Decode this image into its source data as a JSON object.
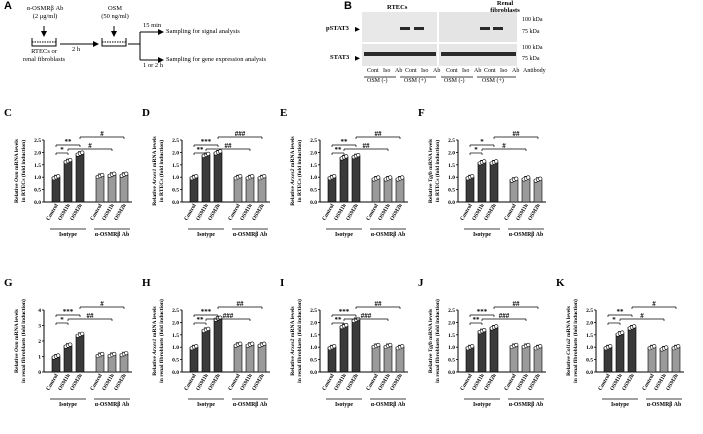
{
  "panel_a": {
    "letter": "A",
    "ab_label_line1": "α-OSMRβ Ab",
    "ab_label_line2": "(2 μg/ml)",
    "osm_label_line1": "OSM",
    "osm_label_line2": "(50 ng/ml)",
    "cells_line1": "RTECs or",
    "cells_line2": "renal fibroblasts",
    "time_2h": "2 h",
    "time_15min": "15 min",
    "time_1or2h": "1 or 2 h",
    "signal": "Sampling for signal analysis",
    "gene": "Sampling for gene expression analysis"
  },
  "panel_b": {
    "letter": "B",
    "group1": "RTECs",
    "group2": "Renal fibroblasts_line1",
    "group2_line1": "Renal",
    "group2_line2": "fibroblasts",
    "row1": "pSTAT3",
    "row2": "STAT3",
    "marker100": "100 kDa",
    "marker75": "75 kDa",
    "lanes": [
      "Cont",
      "Iso",
      "Ab",
      "Cont",
      "Iso",
      "Ab"
    ],
    "antibody": "Antibody",
    "osm_neg": "OSM (-)",
    "osm_pos": "OSM (+)"
  },
  "common": {
    "isotype": "Isotype",
    "ab": "α-OSMRβ Ab",
    "cats": [
      "Control",
      "OSM1h",
      "OSM2h",
      "Control",
      "OSM1h",
      "OSM2h"
    ]
  },
  "chart_data": [
    {
      "id": "C",
      "type": "bar",
      "ylabel_gene": "Osm",
      "ylabel_rest": "mRNA levels",
      "ylabel2": "in RTECs (fold induction)",
      "ylim": [
        0,
        2.5
      ],
      "ticks": [
        "0.0",
        "0.5",
        "1.0",
        "1.5",
        "2.0",
        "2.5"
      ],
      "tickvals": [
        0,
        0.5,
        1,
        1.5,
        2,
        2.5
      ],
      "values": [
        1.0,
        1.65,
        1.95,
        1.05,
        1.1,
        1.1
      ],
      "sig_left": [
        "*",
        "**"
      ],
      "sig_right": [
        "#",
        "#"
      ]
    },
    {
      "id": "D",
      "type": "bar",
      "ylabel_gene": "Arxes1",
      "ylabel_rest": "mRNA levels",
      "ylabel2": "in RTECs (fold induction)",
      "ylim": [
        0,
        2.5
      ],
      "ticks": [
        "0.0",
        "0.5",
        "1.0",
        "1.5",
        "2.0",
        "2.5"
      ],
      "tickvals": [
        0,
        0.5,
        1,
        1.5,
        2,
        2.5
      ],
      "values": [
        1.0,
        1.9,
        2.0,
        1.0,
        1.0,
        1.0
      ],
      "sig_left": [
        "**",
        "***"
      ],
      "sig_right": [
        "###",
        "##"
      ]
    },
    {
      "id": "E",
      "type": "bar",
      "ylabel_gene": "Arxes2",
      "ylabel_rest": "mRNA levels",
      "ylabel2": "in RTECs (fold induction)",
      "ylim": [
        0,
        2.5
      ],
      "ticks": [
        "0.0",
        "0.5",
        "1.0",
        "1.5",
        "2.0",
        "2.5"
      ],
      "tickvals": [
        0,
        0.5,
        1,
        1.5,
        2,
        2.5
      ],
      "values": [
        1.0,
        1.8,
        1.85,
        0.95,
        0.95,
        0.95
      ],
      "sig_left": [
        "**",
        "**"
      ],
      "sig_right": [
        "##",
        "##"
      ]
    },
    {
      "id": "F",
      "type": "bar",
      "ylabel_gene": "Tgfb",
      "ylabel_rest": "mRNA levels",
      "ylabel2": "in RTECs (fold induction)",
      "ylim": [
        0,
        2.5
      ],
      "ticks": [
        "0.0",
        "0.5",
        "1.0",
        "1.5",
        "2.0",
        "2.5"
      ],
      "tickvals": [
        0,
        0.5,
        1,
        1.5,
        2,
        2.5
      ],
      "values": [
        1.0,
        1.6,
        1.6,
        0.9,
        0.95,
        0.9
      ],
      "sig_left": [
        "*",
        "*"
      ],
      "sig_right": [
        "##",
        "#"
      ]
    },
    {
      "id": "G",
      "type": "bar",
      "ylabel_gene": "Osm",
      "ylabel_rest": "mRNA levels",
      "ylabel2": "in renal fibroblasts (fold induction)",
      "ylim": [
        0,
        4
      ],
      "ticks": [
        "0",
        "1",
        "2",
        "3",
        "4"
      ],
      "tickvals": [
        0,
        1,
        2,
        3,
        4
      ],
      "values": [
        1.0,
        1.7,
        2.4,
        1.1,
        1.1,
        1.15
      ],
      "sig_left": [
        "*",
        "***"
      ],
      "sig_right": [
        "#",
        "##"
      ]
    },
    {
      "id": "H",
      "type": "bar",
      "ylabel_gene": "Arxes1",
      "ylabel_rest": "mRNA levels",
      "ylabel2": "in renal fibroblasts (fold induction)",
      "ylim": [
        0,
        2.5
      ],
      "ticks": [
        "0.0",
        "0.5",
        "1.0",
        "1.5",
        "2.0",
        "2.5"
      ],
      "tickvals": [
        0,
        0.5,
        1,
        1.5,
        2,
        2.5
      ],
      "values": [
        1.0,
        1.7,
        2.15,
        1.1,
        1.1,
        1.1
      ],
      "sig_left": [
        "**",
        "***"
      ],
      "sig_right": [
        "##",
        "###"
      ]
    },
    {
      "id": "I",
      "type": "bar",
      "ylabel_gene": "Arxes2",
      "ylabel_rest": "mRNA levels",
      "ylabel2": "in renal fibroblasts (fold induction)",
      "ylim": [
        0,
        2.5
      ],
      "ticks": [
        "0.0",
        "0.5",
        "1.0",
        "1.5",
        "2.0",
        "2.5"
      ],
      "tickvals": [
        0,
        0.5,
        1,
        1.5,
        2,
        2.5
      ],
      "values": [
        1.0,
        1.85,
        2.1,
        1.05,
        1.05,
        1.0
      ],
      "sig_left": [
        "**",
        "***"
      ],
      "sig_right": [
        "##",
        "###"
      ]
    },
    {
      "id": "J",
      "type": "bar",
      "ylabel_gene": "Tgfb",
      "ylabel_rest": "mRNA levels",
      "ylabel2": "in renal fibroblasts (fold induction)",
      "ylim": [
        0,
        2.5
      ],
      "ticks": [
        "0.0",
        "0.5",
        "1.0",
        "1.5",
        "2.0",
        "2.5"
      ],
      "tickvals": [
        0,
        0.5,
        1,
        1.5,
        2,
        2.5
      ],
      "values": [
        1.0,
        1.65,
        1.8,
        1.05,
        1.05,
        1.0
      ],
      "sig_left": [
        "**",
        "***"
      ],
      "sig_right": [
        "##",
        "###"
      ]
    },
    {
      "id": "K",
      "type": "bar",
      "ylabel_gene": "Col1a2",
      "ylabel_rest": "mRNA levels",
      "ylabel2": "in renal fibroblasts (fold induction)",
      "ylim": [
        0,
        2.5
      ],
      "ticks": [
        "0.0",
        "0.5",
        "1.0",
        "1.5",
        "2.0",
        "2.5"
      ],
      "tickvals": [
        0,
        0.5,
        1,
        1.5,
        2,
        2.5
      ],
      "values": [
        1.0,
        1.55,
        1.8,
        1.0,
        0.95,
        1.0
      ],
      "sig_left": [
        "*",
        "**"
      ],
      "sig_right": [
        "#",
        "#"
      ]
    }
  ]
}
